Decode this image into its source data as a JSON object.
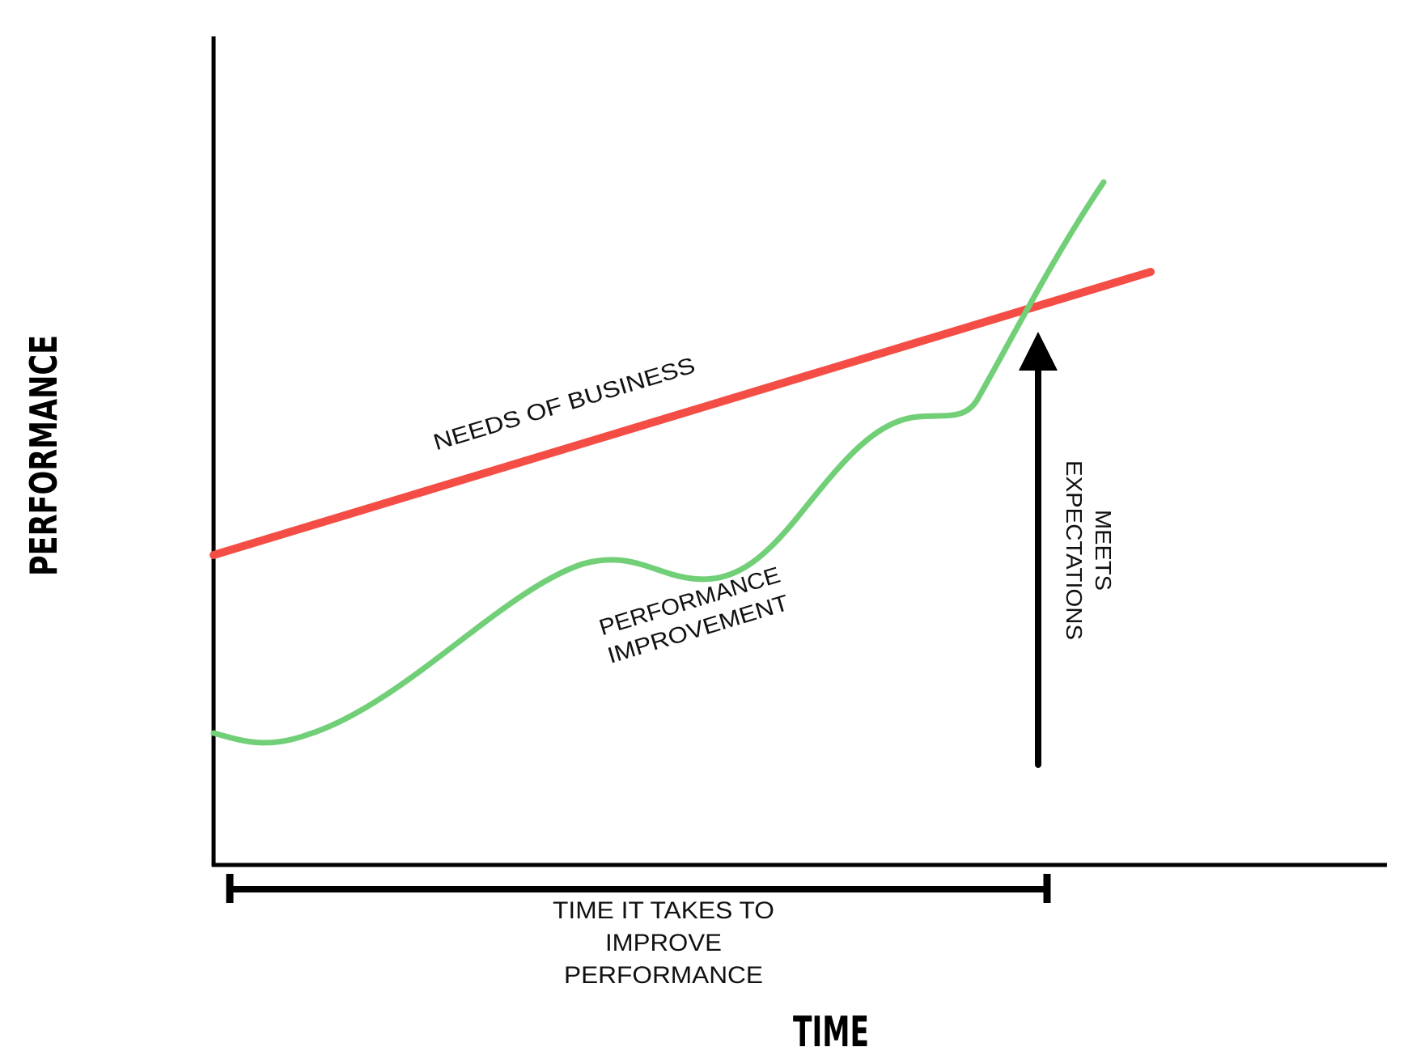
{
  "axes": {
    "y_title": "PERFORMANCE",
    "x_title": "TIME"
  },
  "lines": {
    "business": {
      "label": "NEEDS OF BUSINESS",
      "color": "#f44d45"
    },
    "performance": {
      "label_line1": "PERFORMANCE",
      "label_line2": "IMPROVEMENT",
      "color": "#71cf77"
    }
  },
  "milestone": {
    "label_line1": "MEETS",
    "label_line2": "EXPECTATIONS",
    "arrow_icon": "up-arrow-icon"
  },
  "duration": {
    "label_line1": "TIME IT TAKES TO",
    "label_line2": "IMPROVE",
    "label_line3": "PERFORMANCE",
    "bracket_icon": "range-bracket-icon"
  },
  "colors": {
    "axis": "#000000",
    "text": "#111111"
  }
}
